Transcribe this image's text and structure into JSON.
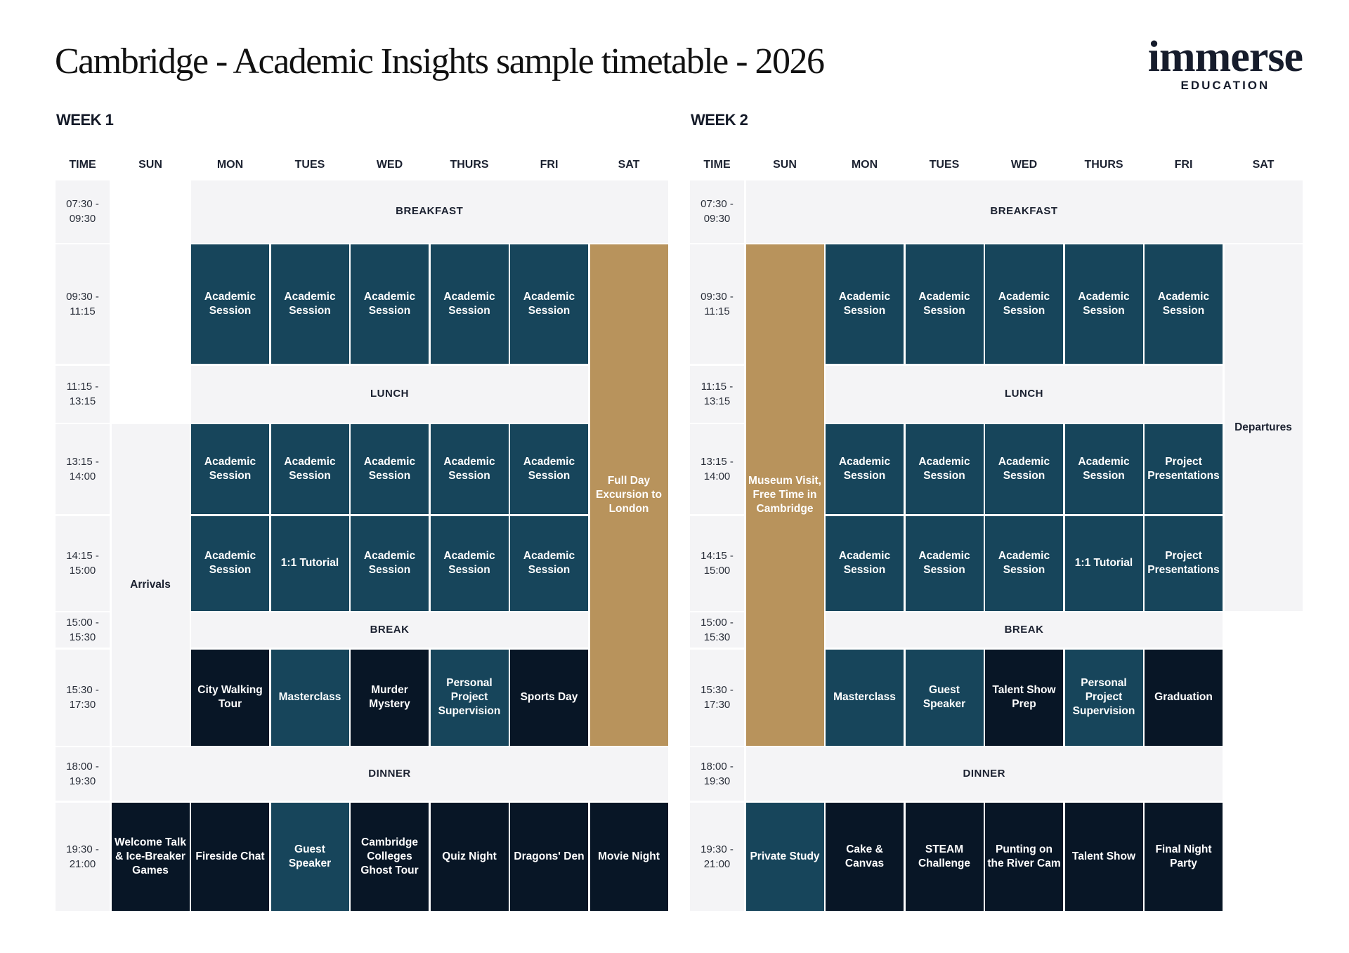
{
  "title": "Cambridge - Academic Insights sample timetable - 2026",
  "logo": {
    "word": "immerse",
    "sub": "EDUCATION"
  },
  "colors": {
    "teal": "#17455b",
    "dark": "#081626",
    "gold": "#b8935c",
    "light": "#f4f4f6"
  },
  "days": [
    "TIME",
    "SUN",
    "MON",
    "TUES",
    "WED",
    "THURS",
    "FRI",
    "SAT"
  ],
  "times": [
    "07:30 -\n09:30",
    "09:30 -\n11:15",
    "11:15 -\n13:15",
    "13:15 -\n14:00",
    "14:15 -\n15:00",
    "15:00 -\n15:30",
    "15:30 -\n17:30",
    "18:00 -\n19:30",
    "19:30 -\n21:00"
  ],
  "weeks": [
    {
      "label": "WEEK 1",
      "cells": [
        {
          "r": 1,
          "c": 3,
          "cs": 6,
          "rs": 1,
          "t": "light meal",
          "text": "BREAKFAST"
        },
        {
          "r": 2,
          "c": 3,
          "t": "teal",
          "text": "Academic Session"
        },
        {
          "r": 2,
          "c": 4,
          "t": "teal",
          "text": "Academic Session"
        },
        {
          "r": 2,
          "c": 5,
          "t": "teal",
          "text": "Academic Session"
        },
        {
          "r": 2,
          "c": 6,
          "t": "teal",
          "text": "Academic Session"
        },
        {
          "r": 2,
          "c": 7,
          "t": "teal",
          "text": "Academic Session"
        },
        {
          "r": 2,
          "c": 8,
          "rs": 6,
          "t": "gold",
          "text": "Full Day Excursion to London"
        },
        {
          "r": 3,
          "c": 3,
          "cs": 5,
          "t": "light meal",
          "text": "LUNCH"
        },
        {
          "r": 4,
          "c": 2,
          "rs": 4,
          "t": "light",
          "text": "Arrivals"
        },
        {
          "r": 4,
          "c": 3,
          "t": "teal",
          "text": "Academic Session"
        },
        {
          "r": 4,
          "c": 4,
          "t": "teal",
          "text": "Academic Session"
        },
        {
          "r": 4,
          "c": 5,
          "t": "teal",
          "text": "Academic Session"
        },
        {
          "r": 4,
          "c": 6,
          "t": "teal",
          "text": "Academic Session"
        },
        {
          "r": 4,
          "c": 7,
          "t": "teal",
          "text": "Academic Session"
        },
        {
          "r": 5,
          "c": 3,
          "t": "teal",
          "text": "Academic Session"
        },
        {
          "r": 5,
          "c": 4,
          "t": "teal",
          "text": "1:1 Tutorial"
        },
        {
          "r": 5,
          "c": 5,
          "t": "teal",
          "text": "Academic Session"
        },
        {
          "r": 5,
          "c": 6,
          "t": "teal",
          "text": "Academic Session"
        },
        {
          "r": 5,
          "c": 7,
          "t": "teal",
          "text": "Academic Session"
        },
        {
          "r": 6,
          "c": 3,
          "cs": 5,
          "t": "light meal",
          "text": "BREAK"
        },
        {
          "r": 7,
          "c": 3,
          "t": "dark",
          "text": "City Walking Tour"
        },
        {
          "r": 7,
          "c": 4,
          "t": "teal",
          "text": "Masterclass"
        },
        {
          "r": 7,
          "c": 5,
          "t": "dark",
          "text": "Murder Mystery"
        },
        {
          "r": 7,
          "c": 6,
          "t": "teal",
          "text": "Personal Project Supervision"
        },
        {
          "r": 7,
          "c": 7,
          "t": "dark",
          "text": "Sports Day"
        },
        {
          "r": 8,
          "c": 2,
          "cs": 7,
          "t": "light meal",
          "text": "DINNER"
        },
        {
          "r": 9,
          "c": 2,
          "t": "dark",
          "text": "Welcome Talk & Ice-Breaker Games"
        },
        {
          "r": 9,
          "c": 3,
          "t": "dark",
          "text": "Fireside Chat"
        },
        {
          "r": 9,
          "c": 4,
          "t": "teal",
          "text": "Guest Speaker"
        },
        {
          "r": 9,
          "c": 5,
          "t": "dark",
          "text": "Cambridge Colleges Ghost Tour"
        },
        {
          "r": 9,
          "c": 6,
          "t": "dark",
          "text": "Quiz Night"
        },
        {
          "r": 9,
          "c": 7,
          "t": "dark",
          "text": "Dragons' Den"
        },
        {
          "r": 9,
          "c": 8,
          "t": "dark",
          "text": "Movie Night"
        }
      ]
    },
    {
      "label": "WEEK 2",
      "cells": [
        {
          "r": 1,
          "c": 2,
          "cs": 7,
          "t": "light meal",
          "text": "BREAKFAST"
        },
        {
          "r": 2,
          "c": 2,
          "rs": 6,
          "t": "gold",
          "text": "Museum Visit, Free Time in Cambridge"
        },
        {
          "r": 2,
          "c": 3,
          "t": "teal",
          "text": "Academic Session"
        },
        {
          "r": 2,
          "c": 4,
          "t": "teal",
          "text": "Academic Session"
        },
        {
          "r": 2,
          "c": 5,
          "t": "teal",
          "text": "Academic Session"
        },
        {
          "r": 2,
          "c": 6,
          "t": "teal",
          "text": "Academic Session"
        },
        {
          "r": 2,
          "c": 7,
          "t": "teal",
          "text": "Academic Session"
        },
        {
          "r": 2,
          "c": 8,
          "rs": 4,
          "t": "light",
          "text": "Departures"
        },
        {
          "r": 3,
          "c": 3,
          "cs": 5,
          "t": "light meal",
          "text": "LUNCH"
        },
        {
          "r": 4,
          "c": 3,
          "t": "teal",
          "text": "Academic Session"
        },
        {
          "r": 4,
          "c": 4,
          "t": "teal",
          "text": "Academic Session"
        },
        {
          "r": 4,
          "c": 5,
          "t": "teal",
          "text": "Academic Session"
        },
        {
          "r": 4,
          "c": 6,
          "t": "teal",
          "text": "Academic Session"
        },
        {
          "r": 4,
          "c": 7,
          "t": "teal",
          "text": "Project Presentations"
        },
        {
          "r": 5,
          "c": 3,
          "t": "teal",
          "text": "Academic Session"
        },
        {
          "r": 5,
          "c": 4,
          "t": "teal",
          "text": "Academic Session"
        },
        {
          "r": 5,
          "c": 5,
          "t": "teal",
          "text": "Academic Session"
        },
        {
          "r": 5,
          "c": 6,
          "t": "teal",
          "text": "1:1 Tutorial"
        },
        {
          "r": 5,
          "c": 7,
          "t": "teal",
          "text": "Project Presentations"
        },
        {
          "r": 6,
          "c": 3,
          "cs": 5,
          "t": "light meal",
          "text": "BREAK"
        },
        {
          "r": 7,
          "c": 3,
          "t": "teal",
          "text": "Masterclass"
        },
        {
          "r": 7,
          "c": 4,
          "t": "teal",
          "text": "Guest Speaker"
        },
        {
          "r": 7,
          "c": 5,
          "t": "dark",
          "text": "Talent Show Prep"
        },
        {
          "r": 7,
          "c": 6,
          "t": "teal",
          "text": "Personal Project Supervision"
        },
        {
          "r": 7,
          "c": 7,
          "t": "dark",
          "text": "Graduation"
        },
        {
          "r": 8,
          "c": 2,
          "cs": 6,
          "t": "light meal",
          "text": "DINNER"
        },
        {
          "r": 9,
          "c": 2,
          "t": "teal",
          "text": "Private Study"
        },
        {
          "r": 9,
          "c": 3,
          "t": "dark",
          "text": "Cake & Canvas"
        },
        {
          "r": 9,
          "c": 4,
          "t": "dark",
          "text": "STEAM Challenge"
        },
        {
          "r": 9,
          "c": 5,
          "t": "dark",
          "text": "Punting on the River Cam"
        },
        {
          "r": 9,
          "c": 6,
          "t": "dark",
          "text": "Talent Show"
        },
        {
          "r": 9,
          "c": 7,
          "t": "dark",
          "text": "Final Night Party"
        }
      ]
    }
  ]
}
